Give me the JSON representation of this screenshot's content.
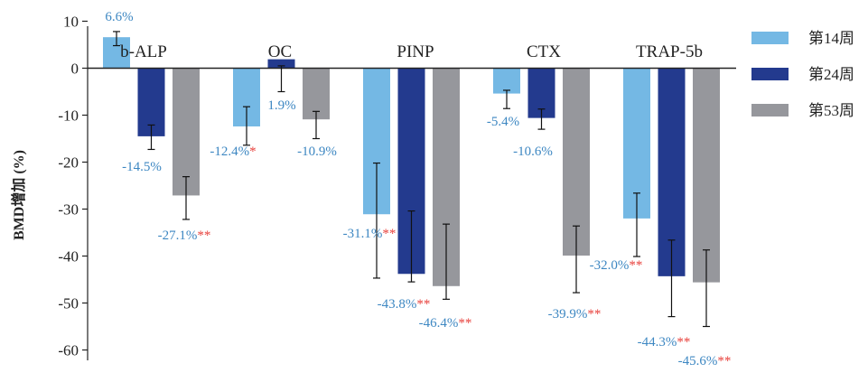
{
  "chart_data": {
    "type": "bar",
    "ylabel": "BMD增加 (%)",
    "ylim": [
      -60,
      10
    ],
    "yticks": [
      10,
      0,
      -10,
      -20,
      -30,
      -40,
      -50,
      -60
    ],
    "categories": [
      "b-ALP",
      "OC",
      "PINP",
      "CTX",
      "TRAP-5b"
    ],
    "legend_position": "right",
    "series": [
      {
        "name": "第14周",
        "color": "#74b8e4",
        "values": [
          6.6,
          -12.4,
          -31.1,
          -5.4,
          -32.0
        ],
        "error": [
          [
            4.8,
            7.8
          ],
          [
            -16.4,
            -8.2
          ],
          [
            -44.7,
            -20.2
          ],
          [
            -8.6,
            -4.7
          ],
          [
            -40.1,
            -26.6
          ]
        ],
        "labels": [
          "6.6%",
          "-12.4%",
          "-31.1%",
          "-5.4%",
          "-32.0%"
        ],
        "sig": [
          "",
          "*",
          "**",
          "",
          "**"
        ]
      },
      {
        "name": "第24周",
        "color": "#233a8e",
        "values": [
          -14.5,
          1.9,
          -43.8,
          -10.6,
          -44.3
        ],
        "error": [
          [
            -17.3,
            -12.1
          ],
          [
            -5.0,
            0.5
          ],
          [
            -45.5,
            -30.4
          ],
          [
            -13.0,
            -8.7
          ],
          [
            -52.9,
            -36.6
          ]
        ],
        "labels": [
          "-14.5%",
          "1.9%",
          "-43.8%",
          "-10.6%",
          "-44.3%"
        ],
        "sig": [
          "",
          "",
          "**",
          "",
          "**"
        ]
      },
      {
        "name": "第53周",
        "color": "#96979c",
        "values": [
          -27.1,
          -10.9,
          -46.4,
          -39.9,
          -45.6
        ],
        "error": [
          [
            -32.2,
            -23.1
          ],
          [
            -15.0,
            -9.2
          ],
          [
            -49.2,
            -33.2
          ],
          [
            -47.8,
            -33.6
          ],
          [
            -55.0,
            -38.7
          ]
        ],
        "labels": [
          "-27.1%",
          "-10.9%",
          "-46.4%",
          "-39.9%",
          "-45.6%"
        ],
        "sig": [
          "**",
          "",
          "**",
          "**",
          "**"
        ]
      }
    ],
    "sig_color": "#e8413c",
    "label_color": "#3d87c2"
  }
}
